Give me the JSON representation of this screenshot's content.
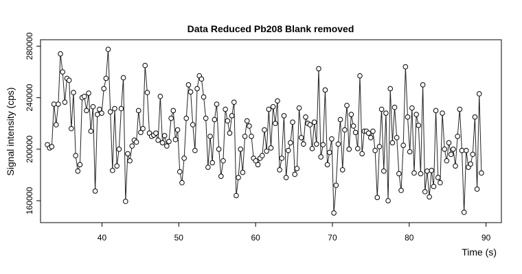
{
  "chart_data": {
    "type": "line",
    "title": "Data Reduced Pb208 Blank removed",
    "xlabel": "Time (s)",
    "ylabel": "Signal intensity (cps)",
    "xlim": [
      32,
      92
    ],
    "ylim": [
      143000,
      285000
    ],
    "xticks": [
      40,
      50,
      60,
      70,
      80,
      90
    ],
    "yticks": [
      160000,
      200000,
      240000,
      280000
    ],
    "grid": false,
    "markers": "open-circle",
    "x_start": 32.9,
    "x_step": 0.2825,
    "values": [
      203500,
      201000,
      202000,
      235000,
      219000,
      235000,
      274000,
      260000,
      236500,
      255000,
      253500,
      216000,
      244000,
      195000,
      183000,
      188000,
      240000,
      241000,
      230000,
      243500,
      214000,
      233000,
      167500,
      227000,
      231000,
      228000,
      247000,
      255000,
      277500,
      229000,
      183500,
      231500,
      187000,
      200000,
      231500,
      255500,
      159500,
      196500,
      191000,
      202500,
      207000,
      205500,
      230000,
      213000,
      216000,
      265000,
      244000,
      212500,
      210000,
      211000,
      212500,
      207000,
      241000,
      205000,
      210500,
      202500,
      206000,
      224000,
      230000,
      207500,
      215000,
      182500,
      174000,
      193000,
      224000,
      250000,
      244500,
      219000,
      199000,
      247000,
      257000,
      254500,
      240500,
      224000,
      186000,
      210000,
      189500,
      223000,
      235000,
      200000,
      179000,
      191000,
      231000,
      222000,
      212500,
      226000,
      236500,
      164000,
      178000,
      200000,
      182000,
      210000,
      222000,
      218000,
      210000,
      193000,
      191000,
      188000,
      193000,
      195000,
      215000,
      198500,
      231000,
      201000,
      233000,
      220000,
      237500,
      184000,
      193000,
      226000,
      178000,
      199000,
      205000,
      221000,
      180500,
      185000,
      232000,
      209000,
      204000,
      225000,
      220000,
      219000,
      200500,
      221000,
      204000,
      262500,
      194000,
      203500,
      246000,
      188000,
      197500,
      208000,
      150500,
      172000,
      204000,
      223000,
      184000,
      215000,
      234000,
      200000,
      227000,
      218000,
      213000,
      200500,
      257000,
      196500,
      214000,
      214000,
      212500,
      209000,
      214000,
      199000,
      162500,
      202000,
      231000,
      183000,
      228000,
      160000,
      247000,
      205000,
      232500,
      209000,
      181000,
      168000,
      203000,
      264000,
      225000,
      198000,
      232000,
      181500,
      227000,
      218500,
      181000,
      250000,
      167000,
      183000,
      163000,
      183500,
      171000,
      230000,
      178000,
      174000,
      228000,
      200000,
      191000,
      205000,
      196000,
      200000,
      187000,
      210000,
      231000,
      199000,
      151000,
      199000,
      186000,
      188500,
      196000,
      225000,
      169000,
      243000,
      181500
    ]
  }
}
